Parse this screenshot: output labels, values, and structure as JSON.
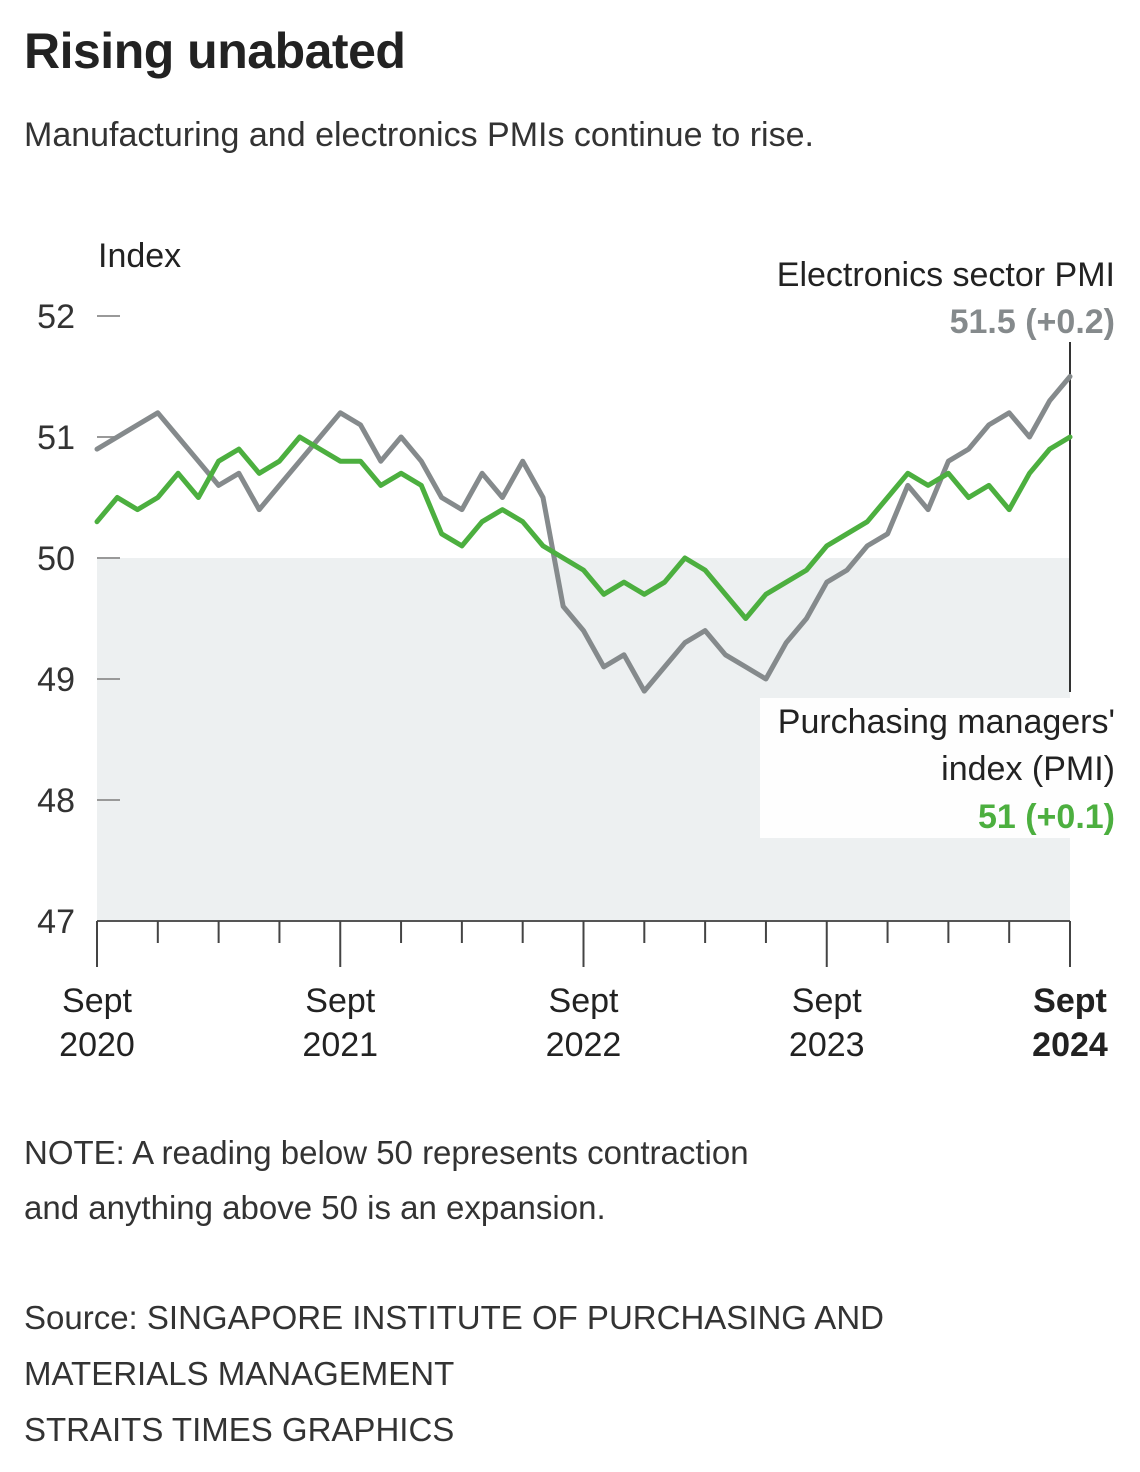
{
  "title": "Rising unabated",
  "subtitle": "Manufacturing and electronics PMIs continue to rise.",
  "note_lines": [
    "NOTE: A reading below 50 represents contraction",
    "and anything above 50 is an expansion."
  ],
  "source_lines": [
    "Source: SINGAPORE INSTITUTE OF PURCHASING AND",
    "MATERIALS MANAGEMENT",
    "STRAITS TIMES GRAPHICS"
  ],
  "chart_data": {
    "type": "line",
    "ylabel": "Index",
    "ylim": [
      47,
      52
    ],
    "yticks": [
      "47",
      "48",
      "49",
      "50",
      "51",
      "52"
    ],
    "xlim": [
      "Sept 2020",
      "Sept 2024"
    ],
    "xtick_labels": [
      {
        "line1": "Sept",
        "line2": "2020",
        "bold": false
      },
      {
        "line1": "Sept",
        "line2": "2021",
        "bold": false
      },
      {
        "line1": "Sept",
        "line2": "2022",
        "bold": false
      },
      {
        "line1": "Sept",
        "line2": "2023",
        "bold": false
      },
      {
        "line1": "Sept",
        "line2": "2024",
        "bold": true
      }
    ],
    "frequency": "monthly",
    "shaded_region": {
      "from": 47,
      "to": 50,
      "meaning": "contraction"
    },
    "series": [
      {
        "name": "Electronics sector PMI",
        "label_value": "51.5 (+0.2)",
        "color": "#858a8c",
        "values": [
          50.9,
          51.0,
          51.1,
          51.2,
          51.0,
          50.8,
          50.6,
          50.7,
          50.4,
          50.6,
          50.8,
          51.0,
          51.2,
          51.1,
          50.8,
          51.0,
          50.8,
          50.5,
          50.4,
          50.7,
          50.5,
          50.8,
          50.5,
          49.6,
          49.4,
          49.1,
          49.2,
          48.9,
          49.1,
          49.3,
          49.4,
          49.2,
          49.1,
          49.0,
          49.3,
          49.5,
          49.8,
          49.9,
          50.1,
          50.2,
          50.6,
          50.4,
          50.8,
          50.9,
          51.1,
          51.2,
          51.0,
          51.3,
          51.5
        ]
      },
      {
        "name_lines": [
          "Purchasing managers'",
          "index (PMI)"
        ],
        "name": "Purchasing managers' index (PMI)",
        "label_value": "51 (+0.1)",
        "color": "#4caf3f",
        "values": [
          50.3,
          50.5,
          50.4,
          50.5,
          50.7,
          50.5,
          50.8,
          50.9,
          50.7,
          50.8,
          51.0,
          50.9,
          50.8,
          50.8,
          50.6,
          50.7,
          50.6,
          50.2,
          50.1,
          50.3,
          50.4,
          50.3,
          50.1,
          50.0,
          49.9,
          49.7,
          49.8,
          49.7,
          49.8,
          50.0,
          49.9,
          49.7,
          49.5,
          49.7,
          49.8,
          49.9,
          50.1,
          50.2,
          50.3,
          50.5,
          50.7,
          50.6,
          50.7,
          50.5,
          50.6,
          50.4,
          50.7,
          50.9,
          51.0
        ]
      }
    ]
  }
}
